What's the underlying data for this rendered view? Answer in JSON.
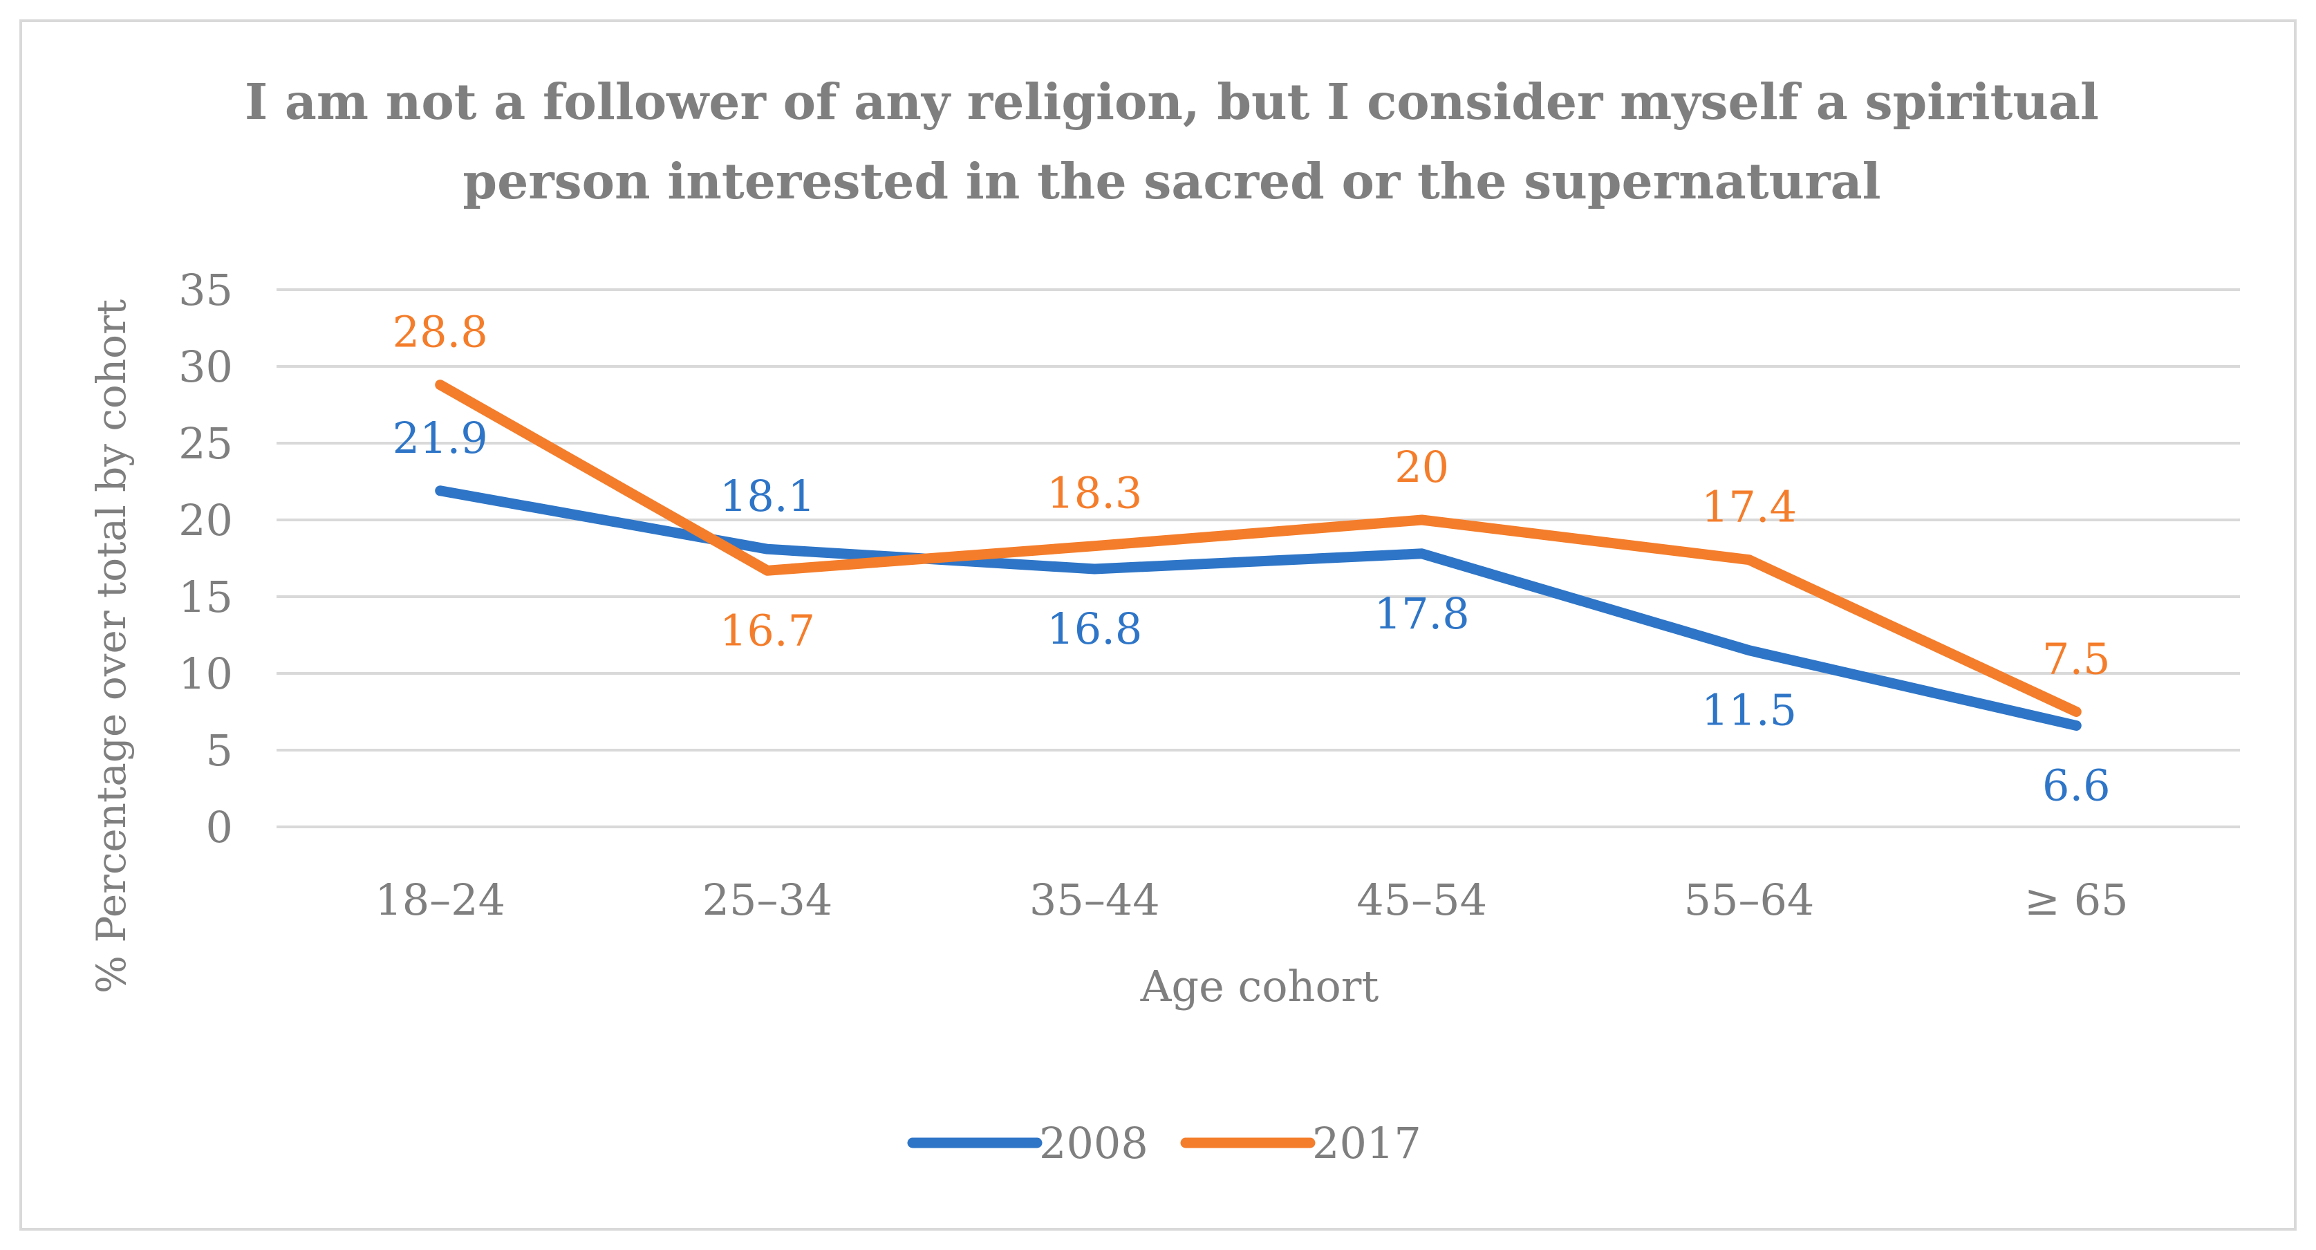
{
  "chart_data": {
    "type": "line",
    "title_lines": [
      "I am not a follower of any religion, but I consider myself a spiritual",
      "person interested in the sacred or the supernatural"
    ],
    "xlabel": "Age cohort",
    "ylabel": "% Percentage over total by cohort",
    "categories": [
      "18–24",
      "25–34",
      "35–44",
      "45–54",
      "55–64",
      "≥ 65"
    ],
    "ylim": [
      0,
      35
    ],
    "yticks": [
      0,
      5,
      10,
      15,
      20,
      25,
      30,
      35
    ],
    "grid": true,
    "legend_position": "bottom",
    "series": [
      {
        "name": "2008",
        "color": "#2E75C7",
        "values": [
          21.9,
          18.1,
          16.8,
          17.8,
          11.5,
          6.6
        ],
        "labels": [
          "21.9",
          "18.1",
          "16.8",
          "17.8",
          "11.5",
          "6.6"
        ],
        "label_sides": [
          "above",
          "above",
          "below",
          "below",
          "below",
          "below"
        ]
      },
      {
        "name": "2017",
        "color": "#F47D2B",
        "values": [
          28.8,
          16.7,
          18.3,
          20,
          17.4,
          7.5
        ],
        "labels": [
          "28.8",
          "16.7",
          "18.3",
          "20",
          "17.4",
          "7.5"
        ],
        "label_sides": [
          "above",
          "below",
          "above",
          "above",
          "above",
          "above"
        ]
      }
    ]
  },
  "colors": {
    "text": "#7F7F7F",
    "grid": "#D9D9D9",
    "border": "#D9D9D9"
  }
}
